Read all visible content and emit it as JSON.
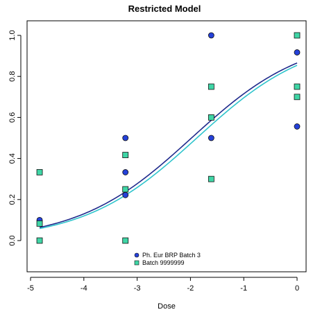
{
  "chart_data": {
    "type": "scatter",
    "title": "Restricted Model",
    "xlabel": "Dose",
    "ylabel": "",
    "xlim": [
      -5,
      0.1
    ],
    "ylim": [
      -0.15,
      1.05
    ],
    "xticks": [
      -5,
      -4,
      -3,
      -2,
      -1,
      0
    ],
    "xtick_labels": [
      "-5",
      "-4",
      "-3",
      "-2",
      "-1",
      "0"
    ],
    "yticks": [
      0.0,
      0.2,
      0.4,
      0.6,
      0.8,
      1.0
    ],
    "ytick_labels": [
      "0.0",
      "0.2",
      "0.4",
      "0.6",
      "0.8",
      "1.0"
    ],
    "grid": false,
    "legend_position": "bottom-center",
    "series": [
      {
        "name": "Ph. Eur BRP Batch 3",
        "marker": "circle",
        "color": "#2541d9",
        "line_color": "#1f2a8c",
        "points": [
          {
            "x": -4.83,
            "y": 0.1
          },
          {
            "x": -3.22,
            "y": 0.5
          },
          {
            "x": -3.22,
            "y": 0.333
          },
          {
            "x": -3.22,
            "y": 0.222
          },
          {
            "x": -1.61,
            "y": 1.0
          },
          {
            "x": -1.61,
            "y": 0.5
          },
          {
            "x": 0.0,
            "y": 0.917
          },
          {
            "x": 0.0,
            "y": 0.556
          }
        ],
        "curve": {
          "bottom": 0.0,
          "top": 1.0,
          "ec50": -1.98,
          "slope": 0.94
        }
      },
      {
        "name": "Batch 9999999",
        "marker": "square",
        "color": "#3fd6a6",
        "line_color": "#2ec4cc",
        "points": [
          {
            "x": -4.83,
            "y": 0.333
          },
          {
            "x": -4.83,
            "y": 0.083
          },
          {
            "x": -4.83,
            "y": 0.0
          },
          {
            "x": -3.22,
            "y": 0.417
          },
          {
            "x": -3.22,
            "y": 0.25
          },
          {
            "x": -3.22,
            "y": 0.0
          },
          {
            "x": -1.61,
            "y": 0.75
          },
          {
            "x": -1.61,
            "y": 0.6
          },
          {
            "x": -1.61,
            "y": 0.3
          },
          {
            "x": 0.0,
            "y": 1.0
          },
          {
            "x": 0.0,
            "y": 0.75
          },
          {
            "x": 0.0,
            "y": 0.7
          }
        ],
        "curve": {
          "bottom": 0.0,
          "top": 1.0,
          "ec50": -1.88,
          "slope": 0.94
        }
      }
    ]
  }
}
